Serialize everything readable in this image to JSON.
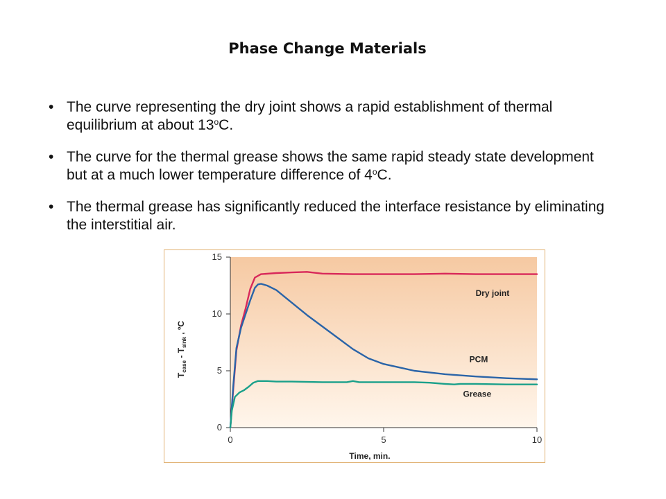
{
  "slide": {
    "title": "Phase Change Materials",
    "bullets": [
      {
        "text_before": "The curve representing the dry joint shows a rapid establishment of thermal equilibrium at about 13",
        "sup": "o",
        "text_after": "C."
      },
      {
        "text_before": "The curve for the thermal grease shows the same rapid steady state development but at a much lower temperature difference of 4",
        "sup": "o",
        "text_after": "C."
      },
      {
        "text_before": "The thermal grease has significantly reduced the interface resistance by eliminating the interstitial air.",
        "sup": "",
        "text_after": ""
      }
    ],
    "bullet_glyph": "•"
  },
  "chart_data": {
    "type": "line",
    "title": "",
    "xlabel": "Time, min.",
    "ylabel_parts": {
      "t": "T",
      "case_sub": "case",
      "sep": " - T",
      "sink_sub": "sink",
      "unit": " , ºC"
    },
    "xlim": [
      0,
      10
    ],
    "ylim": [
      0,
      15
    ],
    "xticks": [
      "0",
      "5",
      "10"
    ],
    "yticks": [
      "0",
      "5",
      "10",
      "15"
    ],
    "colors": {
      "bg_top": "#f6c9a2",
      "bg_bottom": "#fff6ec",
      "axis": "#333333"
    },
    "series": [
      {
        "name": "Dry joint",
        "color": "#d8285a",
        "x": [
          0,
          0.1,
          0.2,
          0.35,
          0.5,
          0.65,
          0.8,
          1.0,
          1.5,
          2.0,
          2.5,
          3.0,
          4.0,
          5.0,
          6.0,
          7.0,
          8.0,
          9.0,
          10.0
        ],
        "y": [
          0,
          3.5,
          6.8,
          9.0,
          10.5,
          12.2,
          13.2,
          13.5,
          13.6,
          13.65,
          13.7,
          13.55,
          13.5,
          13.5,
          13.5,
          13.55,
          13.5,
          13.5,
          13.5
        ]
      },
      {
        "name": "PCM",
        "color": "#2a64a8",
        "x": [
          0,
          0.1,
          0.2,
          0.35,
          0.5,
          0.65,
          0.8,
          0.9,
          1.0,
          1.2,
          1.5,
          2.0,
          2.5,
          3.0,
          3.5,
          4.0,
          4.5,
          5.0,
          5.5,
          6.0,
          7.0,
          8.0,
          9.0,
          10.0
        ],
        "y": [
          0,
          3.8,
          7.0,
          8.8,
          10.0,
          11.2,
          12.3,
          12.6,
          12.65,
          12.5,
          12.1,
          11.0,
          9.9,
          8.9,
          7.9,
          6.9,
          6.1,
          5.6,
          5.3,
          5.0,
          4.7,
          4.5,
          4.35,
          4.25
        ]
      },
      {
        "name": "Grease",
        "color": "#1aa08a",
        "x": [
          0,
          0.05,
          0.15,
          0.3,
          0.45,
          0.6,
          0.75,
          0.9,
          1.2,
          1.5,
          2.0,
          3.0,
          3.8,
          4.0,
          4.2,
          5.0,
          6.0,
          6.5,
          7.0,
          7.3,
          7.5,
          8.0,
          9.0,
          10.0
        ],
        "y": [
          0,
          1.5,
          2.7,
          3.1,
          3.3,
          3.6,
          3.95,
          4.1,
          4.1,
          4.05,
          4.05,
          4.0,
          4.0,
          4.1,
          4.0,
          4.0,
          4.0,
          3.95,
          3.85,
          3.8,
          3.85,
          3.85,
          3.8,
          3.8
        ]
      }
    ],
    "annotations": [
      "Dry joint",
      "PCM",
      "Grease"
    ]
  }
}
